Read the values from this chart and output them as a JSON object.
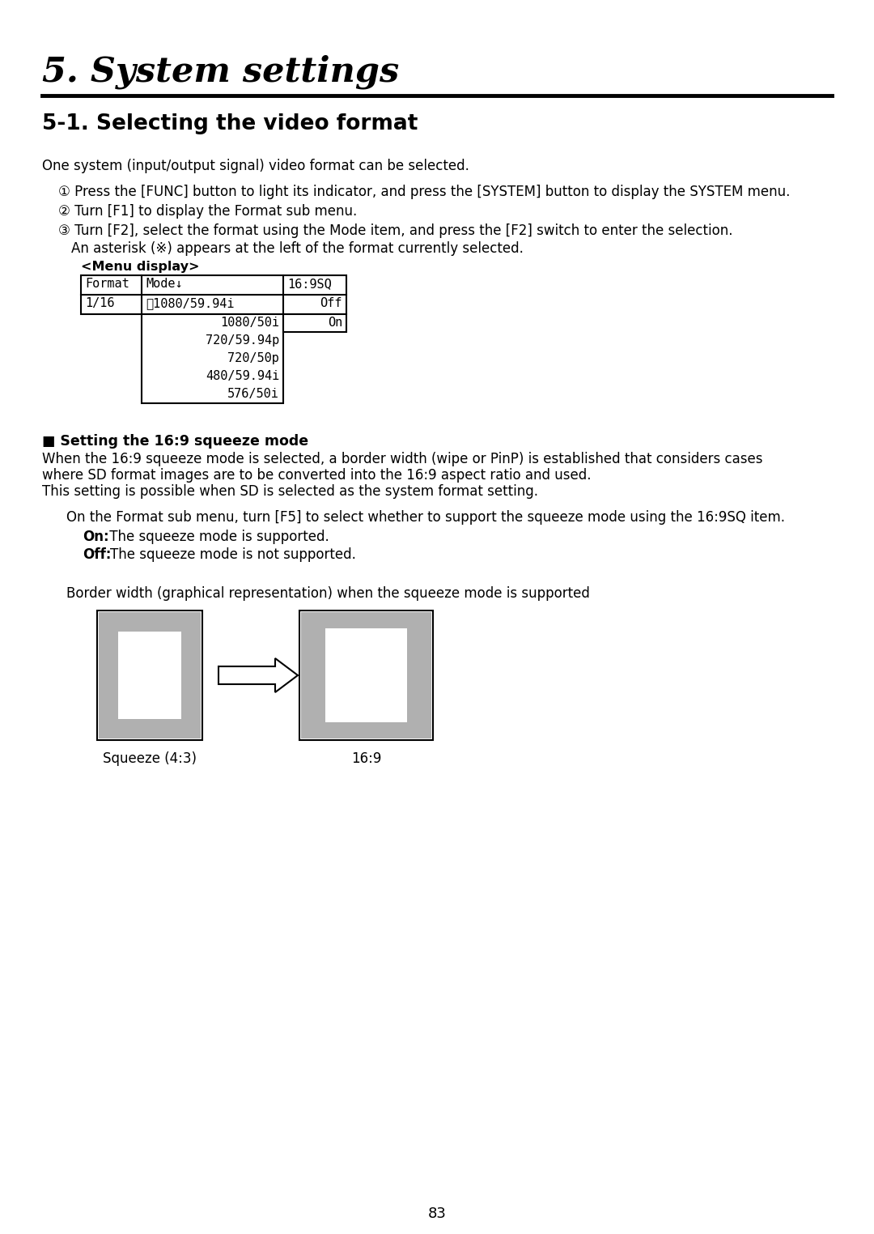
{
  "title": "5. System settings",
  "section": "5-1. Selecting the video format",
  "bg_color": "#ffffff",
  "text_color": "#000000",
  "intro": "One system (input/output signal) video format can be selected.",
  "step1": "① Press the [FUNC] button to light its indicator, and press the [SYSTEM] button to display the SYSTEM menu.",
  "step2": "② Turn [F1] to display the Format sub menu.",
  "step3a": "③ Turn [F2], select the format using the Mode item, and press the [F2] switch to enter the selection.",
  "step3b": "    An asterisk (※) appears at the left of the format currently selected.",
  "menu_label": "<Menu display>",
  "squeeze_heading": "■ Setting the 16:9 squeeze mode",
  "squeeze_para1a": "When the 16:9 squeeze mode is selected, a border width (wipe or PinP) is established that considers cases",
  "squeeze_para1b": "where SD format images are to be converted into the 16:9 aspect ratio and used.",
  "squeeze_para1c": "This setting is possible when SD is selected as the system format setting.",
  "squeeze_para2": "On the Format sub menu, turn [F5] to select whether to support the squeeze mode using the 16:9SQ item.",
  "on_bold": "On:",
  "on_rest": " The squeeze mode is supported.",
  "off_bold": "Off:",
  "off_rest": "The squeeze mode is not supported.",
  "border_caption": "Border width (graphical representation) when the squeeze mode is supported",
  "label_left": "Squeeze (4:3)",
  "label_right": "16:9",
  "page_number": "83",
  "gray_color": "#b0b0b0",
  "box_border_color": "#000000",
  "menu_asterisk": "※",
  "menu_col1_h": "Format",
  "menu_col2_h": "Mode↓",
  "menu_col3_h": "16:9SQ",
  "menu_col1_d": "1/16",
  "menu_col2_d": "※1080/59.94i",
  "menu_col3_d": "Off",
  "menu_dropdown": [
    "1080/50i",
    "720/59.94p",
    "720/50p",
    "480/59.94i",
    "576/50i"
  ],
  "menu_on": "On"
}
